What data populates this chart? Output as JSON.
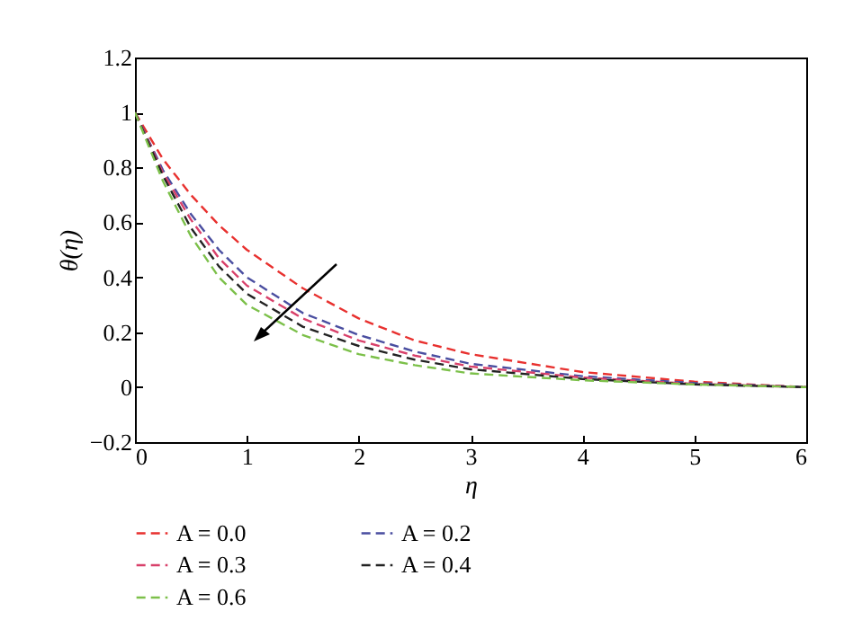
{
  "chart_data": {
    "type": "line",
    "xlabel": "η",
    "ylabel": "θ(η)",
    "x": [
      0,
      0.25,
      0.5,
      0.75,
      1,
      1.5,
      2,
      2.5,
      3,
      4,
      5,
      6
    ],
    "series": [
      {
        "name": "A = 0.0",
        "color": "#e8312f",
        "values": [
          1,
          0.83,
          0.7,
          0.59,
          0.5,
          0.36,
          0.25,
          0.17,
          0.12,
          0.055,
          0.02,
          0
        ]
      },
      {
        "name": "A = 0.2",
        "color": "#4a4ea0",
        "values": [
          1,
          0.79,
          0.63,
          0.5,
          0.4,
          0.27,
          0.19,
          0.13,
          0.085,
          0.04,
          0.015,
          0
        ]
      },
      {
        "name": "A = 0.3",
        "color": "#d8406a",
        "values": [
          1,
          0.78,
          0.61,
          0.47,
          0.37,
          0.25,
          0.17,
          0.115,
          0.075,
          0.035,
          0.012,
          0
        ]
      },
      {
        "name": "A = 0.4",
        "color": "#222222",
        "values": [
          1,
          0.77,
          0.58,
          0.44,
          0.34,
          0.22,
          0.15,
          0.1,
          0.065,
          0.03,
          0.01,
          0
        ]
      },
      {
        "name": "A = 0.6",
        "color": "#7cc04a",
        "values": [
          1,
          0.75,
          0.55,
          0.4,
          0.3,
          0.19,
          0.12,
          0.08,
          0.05,
          0.025,
          0.01,
          0
        ]
      }
    ],
    "xlim": [
      0,
      6
    ],
    "xticks": [
      0,
      1,
      2,
      3,
      4,
      5,
      6
    ],
    "ylim": [
      -0.2,
      1.2
    ],
    "yticks": [
      -0.2,
      0,
      0.2,
      0.4,
      0.6,
      0.8,
      1,
      1.2
    ],
    "grid": false,
    "legend": "bottom",
    "line_style": "dashed",
    "marker": "none"
  }
}
